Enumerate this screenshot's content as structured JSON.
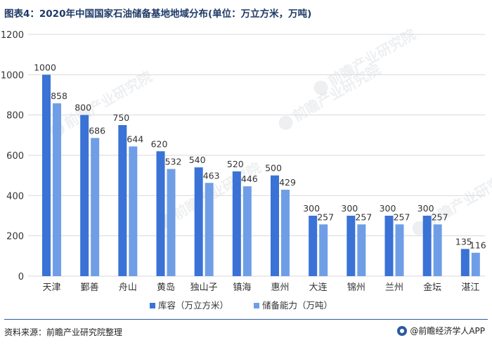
{
  "header": {
    "title": "图表4：2020年中国国家石油储备基地地域分布(单位：万立方米，万吨)"
  },
  "footer": {
    "source": "资料来源：前瞻产业研究院整理",
    "brand": "@前瞻经济学人APP"
  },
  "watermark": {
    "text": "前瞻产业研究院"
  },
  "colors": {
    "series1": "#3a72d6",
    "series2": "#6f9ee6",
    "title": "#1f3a66",
    "grid": "#d9d9d9",
    "axis_text": "#333333"
  },
  "chart_data": {
    "type": "bar",
    "categories": [
      "天津",
      "鄞善",
      "舟山",
      "黄岛",
      "独山子",
      "镇海",
      "惠州",
      "大连",
      "锦州",
      "兰州",
      "金坛",
      "湛江"
    ],
    "series": [
      {
        "name": "库容（万立方米）",
        "values": [
          1000,
          800,
          750,
          620,
          540,
          520,
          500,
          300,
          300,
          300,
          300,
          135
        ]
      },
      {
        "name": "储备能力（万吨）",
        "values": [
          858,
          686,
          644,
          532,
          463,
          446,
          429,
          257,
          257,
          257,
          257,
          116
        ]
      }
    ],
    "yticks": [
      0,
      200,
      400,
      600,
      800,
      1000,
      1200
    ],
    "ylim": [
      0,
      1200
    ],
    "grid": true,
    "legend_position": "bottom"
  }
}
